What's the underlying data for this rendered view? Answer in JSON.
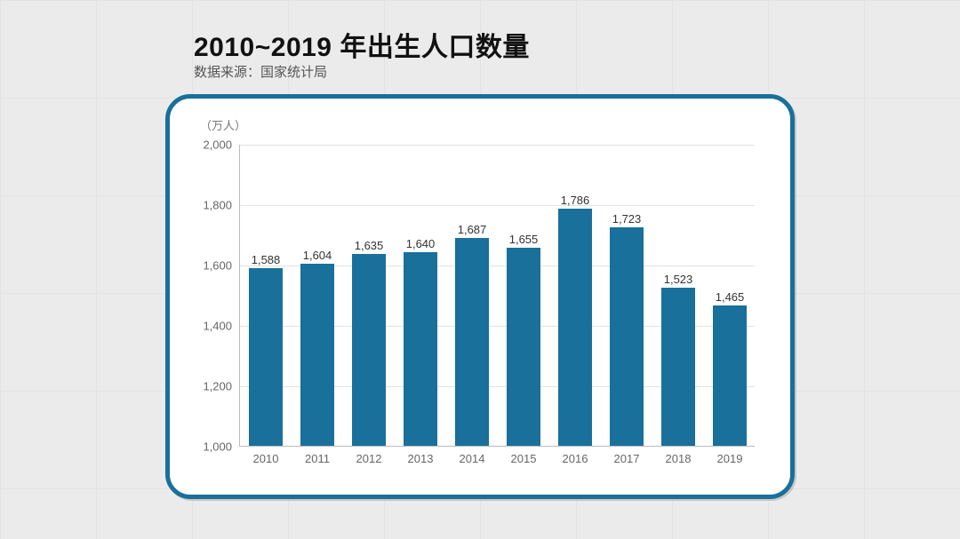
{
  "title": "2010~2019 年出生人口数量",
  "subtitle": "数据来源：国家统计局",
  "chart": {
    "type": "bar",
    "y_unit": "（万人）",
    "categories": [
      "2010",
      "2011",
      "2012",
      "2013",
      "2014",
      "2015",
      "2016",
      "2017",
      "2018",
      "2019"
    ],
    "values": [
      1588,
      1604,
      1635,
      1640,
      1687,
      1655,
      1786,
      1723,
      1523,
      1465
    ],
    "value_labels": [
      "1,588",
      "1,604",
      "1,635",
      "1,640",
      "1,687",
      "1,655",
      "1,786",
      "1,723",
      "1,523",
      "1,465"
    ],
    "y_ticks": [
      1000,
      1200,
      1400,
      1600,
      1800,
      2000
    ],
    "y_tick_labels": [
      "1,000",
      "1,200",
      "1,400",
      "1,600",
      "1,800",
      "2,000"
    ],
    "ylim": [
      1000,
      2000
    ],
    "bar_color": "#18709b",
    "grid_color": "#e2e2e2",
    "axis_color": "#bbbbbb",
    "card_border_color": "#18709b",
    "card_bg": "#ffffff",
    "page_bg": "#ebebeb",
    "bar_width_ratio": 0.66,
    "title_fontsize": 30,
    "subtitle_fontsize": 15,
    "tick_fontsize": 13,
    "value_label_fontsize": 13
  }
}
